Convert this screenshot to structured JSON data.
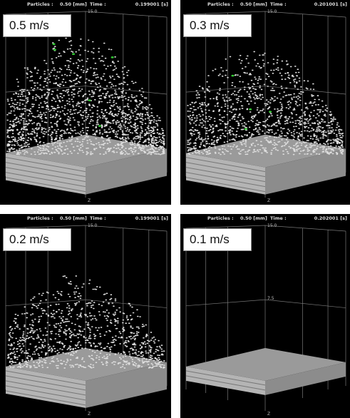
{
  "panels": [
    {
      "header": {
        "particles_label": "Particles :",
        "particles_value": "0.50 [mm]",
        "time_label": "Time :",
        "time_value": "0.199001 [s]"
      },
      "speed": "0.5 m/s",
      "axis_top": "15.0",
      "axis_bottom": "Z"
    },
    {
      "header": {
        "particles_label": "Particles :",
        "particles_value": "0.50 [mm]",
        "time_label": "Time :",
        "time_value": "0.201001 [s]"
      },
      "speed": "0.3 m/s",
      "axis_top": "15.0",
      "axis_bottom": "Z"
    },
    {
      "header": {
        "particles_label": "Particles :",
        "particles_value": "0.50 [mm]",
        "time_label": "Time :",
        "time_value": "0.199001 [s]"
      },
      "speed": "0.2 m/s",
      "axis_top": "15.0",
      "axis_bottom": "Z"
    },
    {
      "header": {
        "particles_label": "Particles :",
        "particles_value": "0.50 [mm]",
        "time_label": "Time :",
        "time_value": "0.202001 [s]"
      },
      "speed": "0.1 m/s",
      "axis_top": "15.0",
      "axis_mid": "7.5",
      "axis_bottom": "Z"
    }
  ]
}
